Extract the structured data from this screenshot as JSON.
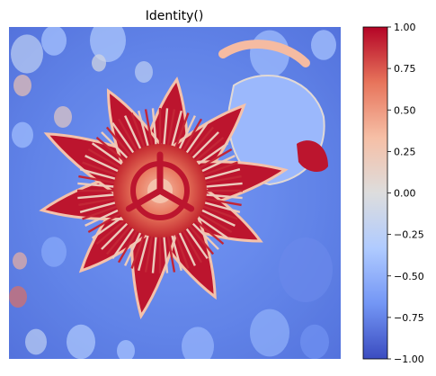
{
  "chart_data": {
    "type": "heatmap",
    "title": "Identity()",
    "xlabel": "",
    "ylabel": "",
    "axes_visible": false,
    "colormap": "coolwarm",
    "colormap_stops": [
      "#3b4cc0",
      "#7396f5",
      "#b0cbff",
      "#dddddd",
      "#f6bfa6",
      "#e7745b",
      "#b40426"
    ],
    "colorbar": {
      "position": "right",
      "vmin": -1.0,
      "vmax": 1.0,
      "ticks": [
        1.0,
        0.75,
        0.5,
        0.25,
        0.0,
        -0.25,
        -0.5,
        -0.75,
        -1.0
      ],
      "tick_labels": [
        "1.00",
        "0.75",
        "0.50",
        "0.25",
        "0.00",
        "−0.25",
        "−0.50",
        "−0.75",
        "−1.00"
      ]
    },
    "image_content": {
      "subject": "passion flower",
      "background_value": -0.6,
      "petal_value": 0.95,
      "center_value": 0.6
    }
  }
}
